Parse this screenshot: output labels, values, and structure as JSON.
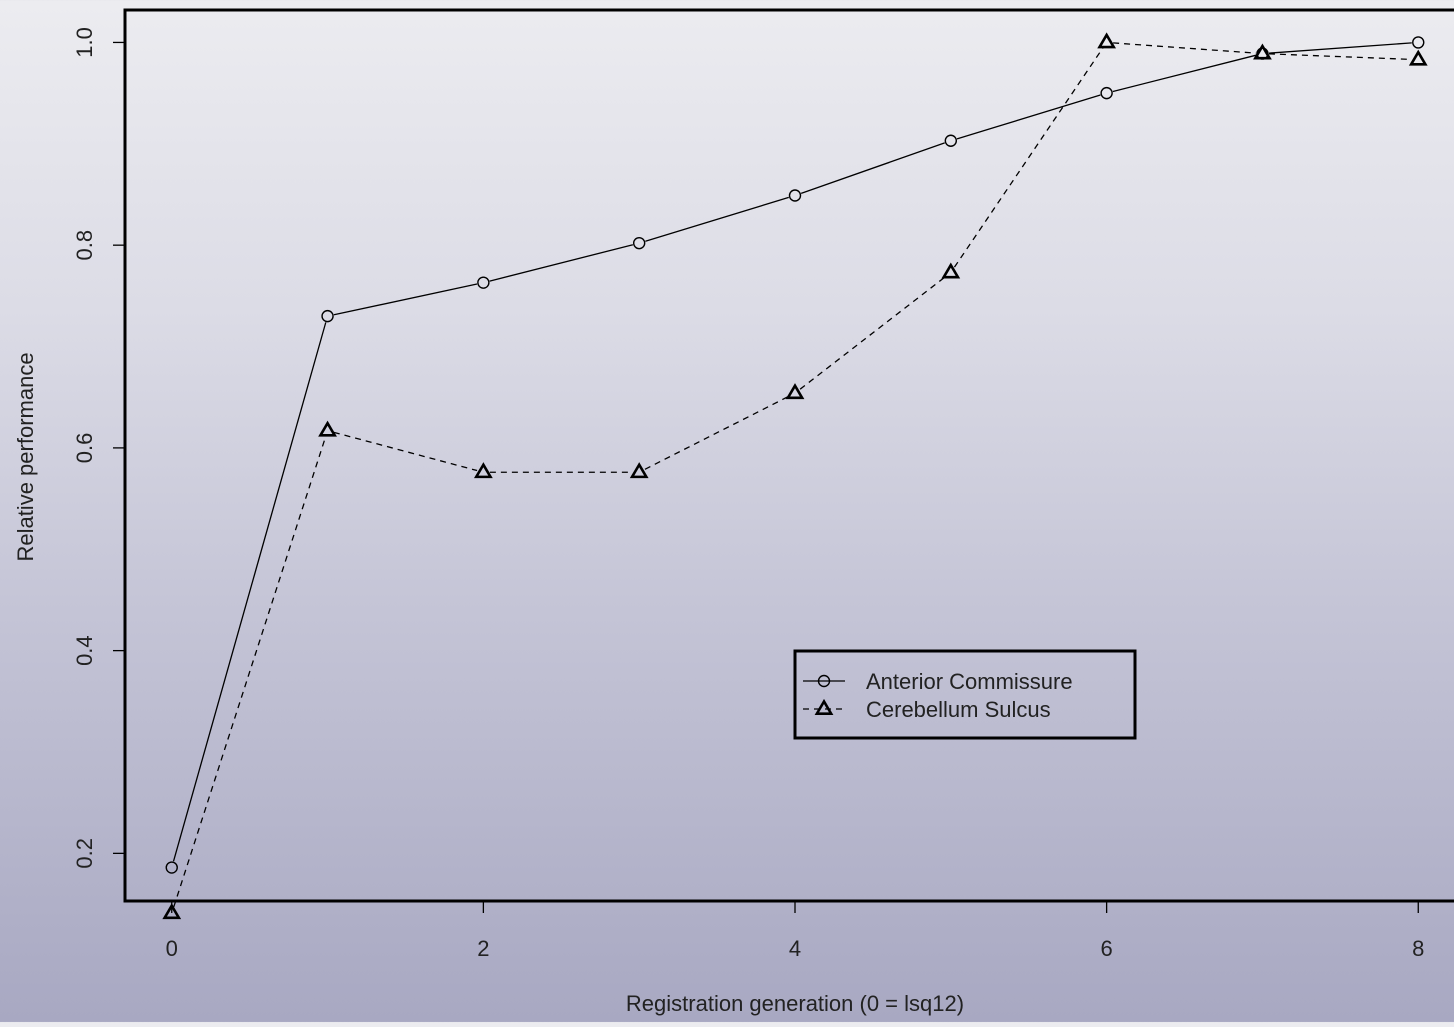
{
  "chart_data": {
    "type": "line",
    "title": "",
    "xlabel": "Registration generation (0 = lsq12)",
    "ylabel": "Relative performance",
    "xlim": [
      -0.3,
      8.3
    ],
    "ylim": [
      0.153,
      1.032
    ],
    "x_ticks": [
      0,
      2,
      4,
      6,
      8
    ],
    "x_tick_labels": [
      "0",
      "2",
      "4",
      "6",
      "8"
    ],
    "y_ticks": [
      0.2,
      0.4,
      0.6,
      0.8,
      1.0
    ],
    "y_tick_labels": [
      "0.2",
      "0.4",
      "0.6",
      "0.8",
      "1.0"
    ],
    "grid": false,
    "legend_position": "lower-right",
    "series": [
      {
        "name": "Anterior Commissure",
        "marker": "circle",
        "line_style": "solid",
        "color": "#000000",
        "x": [
          0,
          1,
          2,
          3,
          4,
          5,
          6,
          7,
          8
        ],
        "y": [
          0.186,
          0.73,
          0.763,
          0.802,
          0.849,
          0.903,
          0.95,
          0.989,
          1.0
        ]
      },
      {
        "name": "Cerebellum Sulcus",
        "marker": "triangle",
        "line_style": "dashed",
        "color": "#000000",
        "x": [
          0,
          1,
          2,
          3,
          4,
          5,
          6,
          7,
          8
        ],
        "y": [
          0.141,
          0.617,
          0.576,
          0.576,
          0.654,
          0.773,
          1.0,
          0.989,
          0.983
        ]
      }
    ]
  }
}
